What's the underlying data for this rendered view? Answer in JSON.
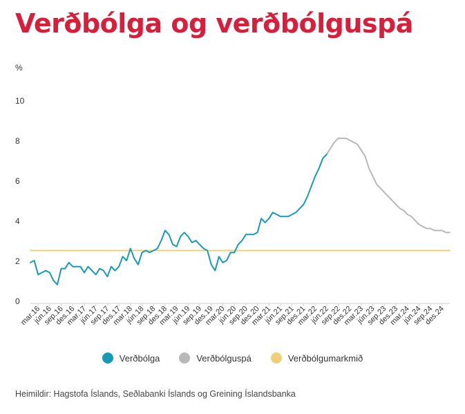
{
  "title": "Verðbólga og verðbólguspá",
  "source": "Heimildir: Hagstofa Íslands, Seðlabanki Íslands og Greining Íslandsbanka",
  "chart_data": {
    "type": "line",
    "title": "Verðbólga og verðbólguspá",
    "ylabel": "%",
    "xlabel": "",
    "ylim": [
      0,
      10
    ],
    "yticks": [
      0,
      2,
      4,
      6,
      8,
      10
    ],
    "grid": false,
    "legend_position": "bottom",
    "x_start": "jan.16",
    "x_step": "month",
    "x_ticks": [
      {
        "i": 2,
        "label": "mar.16"
      },
      {
        "i": 5,
        "label": "jún.16"
      },
      {
        "i": 8,
        "label": "sep.16"
      },
      {
        "i": 11,
        "label": "des.16"
      },
      {
        "i": 14,
        "label": "mar.17"
      },
      {
        "i": 17,
        "label": "jún.17"
      },
      {
        "i": 20,
        "label": "sep.17"
      },
      {
        "i": 23,
        "label": "des.17"
      },
      {
        "i": 26,
        "label": "mar.18"
      },
      {
        "i": 29,
        "label": "jún.18"
      },
      {
        "i": 32,
        "label": "sep.18"
      },
      {
        "i": 35,
        "label": "des.18"
      },
      {
        "i": 38,
        "label": "mar.19"
      },
      {
        "i": 41,
        "label": "jún.19"
      },
      {
        "i": 44,
        "label": "sep.19"
      },
      {
        "i": 47,
        "label": "des.19"
      },
      {
        "i": 50,
        "label": "mar.20"
      },
      {
        "i": 53,
        "label": "jún.20"
      },
      {
        "i": 56,
        "label": "sep.20"
      },
      {
        "i": 59,
        "label": "des.20"
      },
      {
        "i": 62,
        "label": "mar.21"
      },
      {
        "i": 65,
        "label": "jún.21"
      },
      {
        "i": 68,
        "label": "sep.21"
      },
      {
        "i": 71,
        "label": "des.21"
      },
      {
        "i": 74,
        "label": "mar.22"
      },
      {
        "i": 77,
        "label": "jún.22"
      },
      {
        "i": 80,
        "label": "sep.22"
      },
      {
        "i": 83,
        "label": "des.22"
      },
      {
        "i": 86,
        "label": "mar.23"
      },
      {
        "i": 89,
        "label": "jún.23"
      },
      {
        "i": 92,
        "label": "sep.23"
      },
      {
        "i": 95,
        "label": "des.23"
      },
      {
        "i": 98,
        "label": "mar.24"
      },
      {
        "i": 101,
        "label": "jún.24"
      },
      {
        "i": 104,
        "label": "sep.24"
      },
      {
        "i": 107,
        "label": "des.24"
      }
    ],
    "series": [
      {
        "name": "Verðbólga",
        "color": "#159ab8",
        "start_index": 0,
        "values": [
          1.9,
          2.0,
          1.3,
          1.4,
          1.5,
          1.4,
          1.0,
          0.8,
          1.6,
          1.6,
          1.9,
          1.7,
          1.7,
          1.7,
          1.4,
          1.7,
          1.5,
          1.3,
          1.6,
          1.5,
          1.2,
          1.7,
          1.5,
          1.7,
          2.2,
          2.0,
          2.6,
          2.1,
          1.8,
          2.4,
          2.5,
          2.4,
          2.5,
          2.6,
          3.0,
          3.5,
          3.3,
          2.8,
          2.7,
          3.2,
          3.4,
          3.2,
          2.9,
          3.0,
          2.8,
          2.6,
          2.5,
          1.8,
          1.5,
          2.2,
          1.9,
          2.0,
          2.4,
          2.4,
          2.8,
          3.0,
          3.3,
          3.3,
          3.3,
          3.4,
          4.1,
          3.9,
          4.1,
          4.4,
          4.3,
          4.2,
          4.2,
          4.2,
          4.3,
          4.4,
          4.6,
          4.8,
          5.2,
          5.7,
          6.2,
          6.6,
          7.1,
          7.3
        ]
      },
      {
        "name": "Verðbólguspá",
        "color": "#b8b8b8",
        "start_index": 77,
        "values": [
          7.3,
          7.6,
          7.9,
          8.1,
          8.1,
          8.1,
          8.0,
          7.9,
          7.8,
          7.5,
          7.2,
          6.6,
          6.2,
          5.8,
          5.6,
          5.4,
          5.2,
          5.0,
          4.8,
          4.6,
          4.5,
          4.3,
          4.2,
          4.0,
          3.8,
          3.7,
          3.6,
          3.6,
          3.5,
          3.5,
          3.5,
          3.4,
          3.4
        ]
      },
      {
        "name": "Verðbólgumarkmið",
        "color": "#efd078",
        "start_index": 0,
        "constant": 2.5
      }
    ]
  }
}
